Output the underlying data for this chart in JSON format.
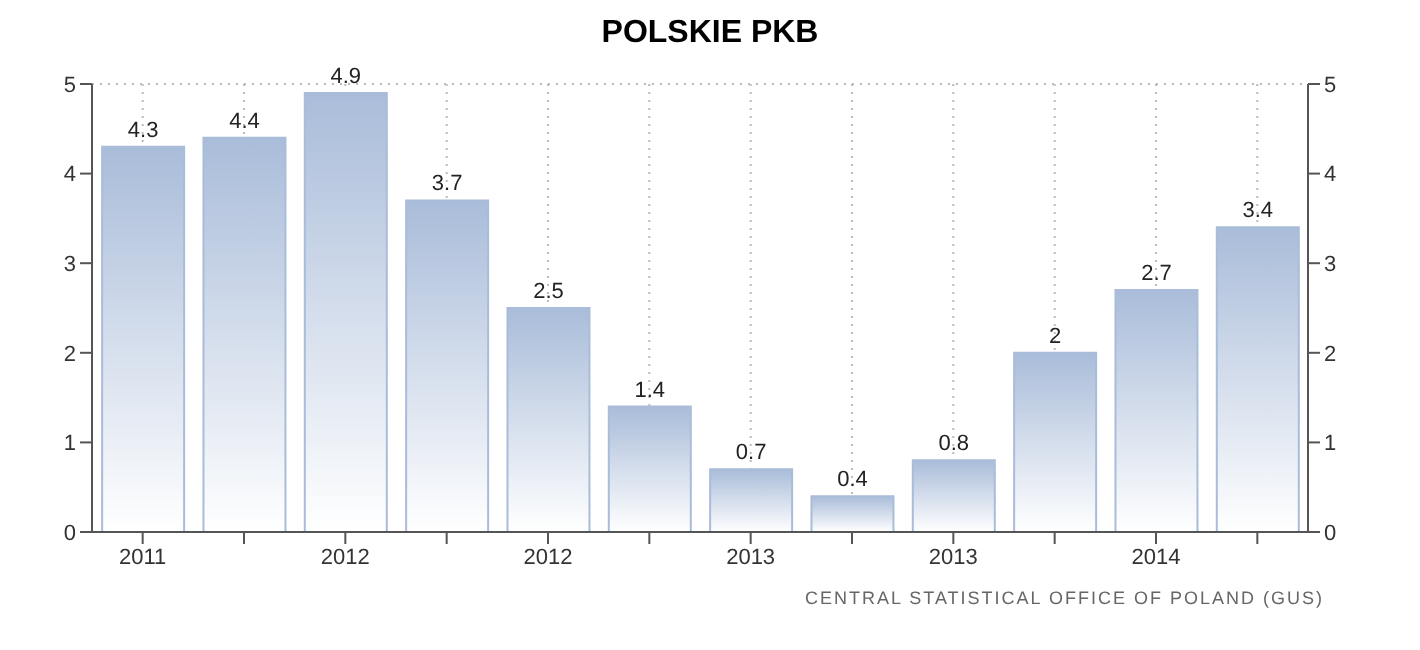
{
  "chart_data": {
    "type": "bar",
    "title": "POLSKIE PKB",
    "categories": [
      "2011",
      null,
      "2012",
      null,
      "2012",
      null,
      "2013",
      null,
      "2013",
      null,
      "2014",
      null
    ],
    "values": [
      4.3,
      4.4,
      4.9,
      3.7,
      2.5,
      1.4,
      0.7,
      0.4,
      0.8,
      2,
      2.7,
      3.4
    ],
    "color": "#a9bcd9",
    "data_labels": true,
    "grid": true,
    "ylim": [
      0,
      5
    ],
    "yticks": [
      0,
      1,
      2,
      3,
      4,
      5
    ],
    "y2lim": [
      0,
      5
    ],
    "y2ticks": [
      0,
      1,
      2,
      3,
      4,
      5
    ],
    "annotations": [
      "CENTRAL STATISTICAL OFFICE OF POLAND (GUS)"
    ]
  }
}
